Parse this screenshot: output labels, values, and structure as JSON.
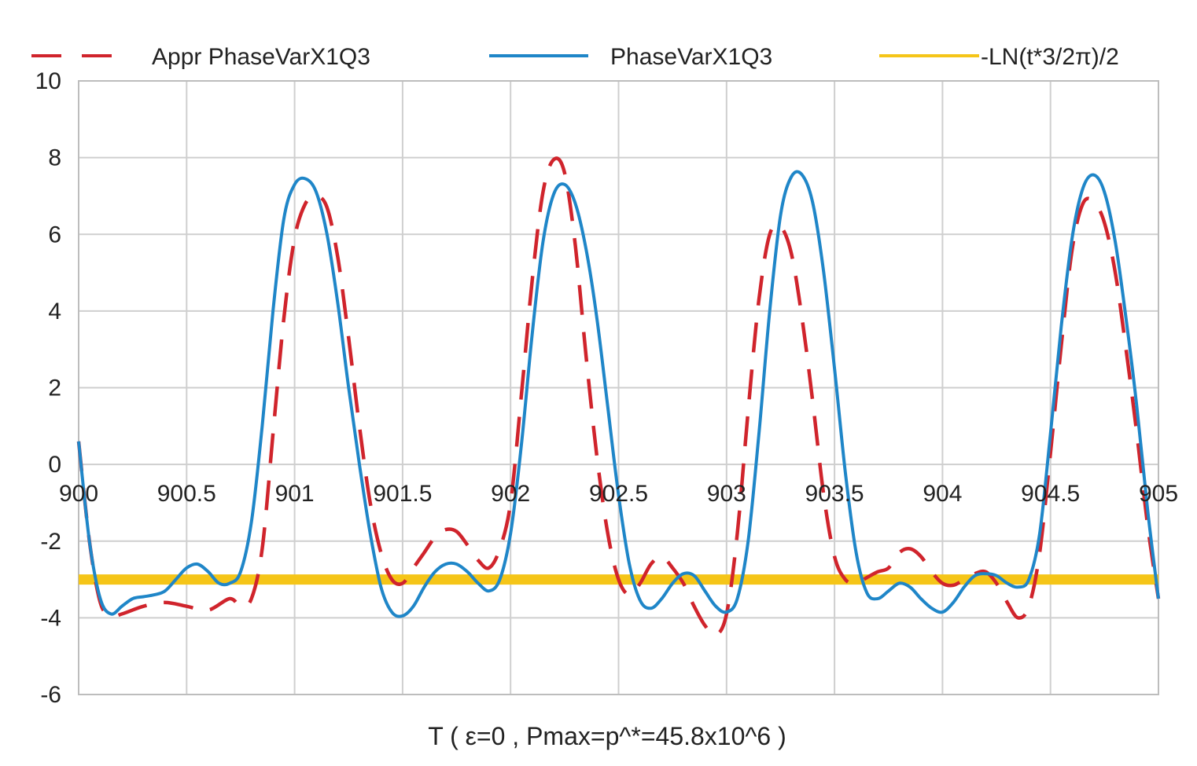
{
  "chart_data": {
    "type": "line",
    "title": "",
    "xlabel": "T ( ε=0 , Pmax=p^*=45.8x10^6 )",
    "ylabel": "",
    "xlim": [
      900,
      905
    ],
    "ylim": [
      -6,
      10
    ],
    "grid": true,
    "legend_position": "top",
    "x_ticks": [
      "900",
      "900.5",
      "901",
      "901.5",
      "902",
      "902.5",
      "903",
      "903.5",
      "904",
      "904.5",
      "905"
    ],
    "x_tick_values": [
      900,
      900.5,
      901,
      901.5,
      902,
      902.5,
      903,
      903.5,
      904,
      904.5,
      905
    ],
    "y_ticks": [
      "10",
      "8",
      "6",
      "4",
      "2",
      "0",
      "-2",
      "-4",
      "-6"
    ],
    "y_tick_values": [
      10,
      8,
      6,
      4,
      2,
      0,
      -2,
      -4,
      -6
    ],
    "series": [
      {
        "name": "Appr PhaseVarX1Q3",
        "color": "#d0242c",
        "style": "dashed",
        "x": [
          900.0,
          900.05,
          900.1,
          900.15,
          900.2,
          900.3,
          900.4,
          900.5,
          900.6,
          900.7,
          900.75,
          900.8,
          900.85,
          900.9,
          900.95,
          901.0,
          901.05,
          901.1,
          901.15,
          901.2,
          901.25,
          901.3,
          901.35,
          901.4,
          901.45,
          901.5,
          901.55,
          901.6,
          901.65,
          901.7,
          901.75,
          901.8,
          901.85,
          901.9,
          901.95,
          902.0,
          902.05,
          902.1,
          902.15,
          902.2,
          902.25,
          902.3,
          902.35,
          902.4,
          902.45,
          902.5,
          902.55,
          902.6,
          902.65,
          902.7,
          902.75,
          902.8,
          902.85,
          902.9,
          902.95,
          903.0,
          903.05,
          903.1,
          903.15,
          903.2,
          903.25,
          903.3,
          903.35,
          903.4,
          903.45,
          903.5,
          903.55,
          903.6,
          903.65,
          903.7,
          903.75,
          903.8,
          903.85,
          903.9,
          903.95,
          904.0,
          904.05,
          904.1,
          904.15,
          904.2,
          904.25,
          904.3,
          904.35,
          904.4,
          904.45,
          904.5,
          904.55,
          904.6,
          904.65,
          904.7,
          904.75,
          904.8,
          904.85,
          904.9,
          904.95,
          905.0
        ],
        "y": [
          0.6,
          -2.0,
          -3.6,
          -3.95,
          -3.9,
          -3.7,
          -3.6,
          -3.7,
          -3.8,
          -3.5,
          -3.7,
          -3.5,
          -2.2,
          0.8,
          3.8,
          5.9,
          6.8,
          7.0,
          6.7,
          5.4,
          3.3,
          1.0,
          -1.0,
          -2.3,
          -3.0,
          -3.1,
          -2.7,
          -2.3,
          -1.9,
          -1.7,
          -1.75,
          -2.1,
          -2.5,
          -2.7,
          -2.2,
          -1.0,
          1.8,
          4.8,
          7.1,
          7.95,
          7.6,
          5.7,
          2.8,
          0.2,
          -1.8,
          -3.0,
          -3.4,
          -3.1,
          -2.6,
          -2.4,
          -2.7,
          -3.1,
          -3.7,
          -4.2,
          -4.45,
          -3.9,
          -1.8,
          1.4,
          4.3,
          6.0,
          6.2,
          5.5,
          3.8,
          1.6,
          -0.8,
          -2.4,
          -3.0,
          -3.1,
          -2.95,
          -2.8,
          -2.7,
          -2.3,
          -2.2,
          -2.4,
          -2.8,
          -3.1,
          -3.15,
          -3.0,
          -2.85,
          -2.8,
          -3.1,
          -3.6,
          -4.0,
          -3.7,
          -2.3,
          0.3,
          3.1,
          5.6,
          6.8,
          6.85,
          6.3,
          5.0,
          3.0,
          0.8,
          -1.6,
          -3.5
        ]
      },
      {
        "name": "PhaseVarX1Q3",
        "color": "#1f86c8",
        "style": "solid",
        "x": [
          900.0,
          900.05,
          900.1,
          900.15,
          900.2,
          900.25,
          900.3,
          900.35,
          900.4,
          900.45,
          900.5,
          900.55,
          900.6,
          900.65,
          900.7,
          900.75,
          900.8,
          900.85,
          900.9,
          900.95,
          901.0,
          901.05,
          901.1,
          901.15,
          901.2,
          901.25,
          901.3,
          901.35,
          901.4,
          901.45,
          901.5,
          901.55,
          901.6,
          901.65,
          901.7,
          901.75,
          901.8,
          901.85,
          901.9,
          901.95,
          902.0,
          902.05,
          902.1,
          902.15,
          902.2,
          902.25,
          902.3,
          902.35,
          902.4,
          902.45,
          902.5,
          902.55,
          902.6,
          902.65,
          902.7,
          902.75,
          902.8,
          902.85,
          902.9,
          902.95,
          903.0,
          903.05,
          903.1,
          903.15,
          903.2,
          903.25,
          903.3,
          903.35,
          903.4,
          903.45,
          903.5,
          903.55,
          903.6,
          903.65,
          903.7,
          903.75,
          903.8,
          903.85,
          903.9,
          903.95,
          904.0,
          904.05,
          904.1,
          904.15,
          904.2,
          904.25,
          904.3,
          904.35,
          904.4,
          904.45,
          904.5,
          904.55,
          904.6,
          904.65,
          904.7,
          904.75,
          904.8,
          904.85,
          904.9,
          904.95,
          905.0
        ],
        "y": [
          0.6,
          -2.0,
          -3.5,
          -3.9,
          -3.7,
          -3.5,
          -3.45,
          -3.4,
          -3.3,
          -3.0,
          -2.7,
          -2.6,
          -2.8,
          -3.1,
          -3.1,
          -2.8,
          -1.5,
          1.0,
          4.0,
          6.4,
          7.3,
          7.45,
          7.1,
          6.0,
          4.2,
          2.0,
          0.0,
          -1.8,
          -3.2,
          -3.85,
          -3.95,
          -3.7,
          -3.2,
          -2.8,
          -2.6,
          -2.6,
          -2.8,
          -3.1,
          -3.3,
          -3.0,
          -1.8,
          0.5,
          3.4,
          5.8,
          7.05,
          7.3,
          6.8,
          5.6,
          3.8,
          1.5,
          -0.8,
          -2.6,
          -3.55,
          -3.75,
          -3.5,
          -3.1,
          -2.85,
          -2.9,
          -3.3,
          -3.7,
          -3.85,
          -3.5,
          -2.0,
          0.8,
          4.0,
          6.5,
          7.5,
          7.55,
          6.8,
          5.0,
          2.5,
          -0.2,
          -2.3,
          -3.35,
          -3.5,
          -3.3,
          -3.1,
          -3.2,
          -3.5,
          -3.75,
          -3.85,
          -3.6,
          -3.2,
          -2.9,
          -2.85,
          -2.9,
          -3.1,
          -3.2,
          -3.0,
          -1.8,
          0.8,
          3.6,
          5.9,
          7.2,
          7.55,
          7.1,
          5.8,
          3.8,
          1.5,
          -1.2,
          -3.5
        ]
      },
      {
        "name": "-LN(t*3/2π)/2",
        "color": "#f5c518",
        "style": "solid",
        "x": [
          900,
          905
        ],
        "y": [
          -3.0,
          -3.0
        ]
      }
    ]
  }
}
